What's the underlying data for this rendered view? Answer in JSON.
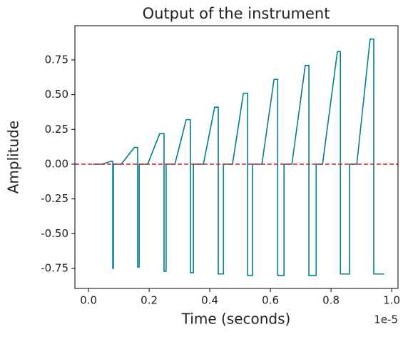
{
  "chart_data": {
    "type": "line",
    "title": "Output of the instrument",
    "xlabel": "Time (seconds)",
    "ylabel": "Amplitude",
    "x_offset_label": "1e-5",
    "x": [
      0.014,
      0.045,
      0.073,
      0.08,
      0.08,
      0.082,
      0.082,
      0.108,
      0.151,
      0.162,
      0.162,
      0.167,
      0.167,
      0.195,
      0.235,
      0.249,
      0.249,
      0.256,
      0.256,
      0.285,
      0.322,
      0.336,
      0.336,
      0.346,
      0.346,
      0.379,
      0.416,
      0.428,
      0.428,
      0.445,
      0.445,
      0.475,
      0.511,
      0.525,
      0.525,
      0.541,
      0.541,
      0.572,
      0.612,
      0.624,
      0.624,
      0.645,
      0.645,
      0.671,
      0.715,
      0.727,
      0.727,
      0.751,
      0.751,
      0.772,
      0.821,
      0.831,
      0.831,
      0.861,
      0.861,
      0.885,
      0.929,
      0.941,
      0.941,
      0.976
    ],
    "series": [
      {
        "color": "#007f8c",
        "values": [
          0,
          0,
          0.02,
          0.02,
          -0.75,
          -0.75,
          0,
          0,
          0.12,
          0.12,
          -0.74,
          -0.74,
          0,
          0,
          0.22,
          0.22,
          -0.77,
          -0.77,
          0,
          0,
          0.32,
          0.32,
          -0.78,
          -0.78,
          0,
          0,
          0.41,
          0.41,
          -0.79,
          -0.79,
          0,
          0,
          0.51,
          0.51,
          -0.8,
          -0.8,
          0,
          0,
          0.61,
          0.61,
          -0.8,
          -0.8,
          0,
          0,
          0.71,
          0.71,
          -0.8,
          -0.8,
          0,
          0,
          0.81,
          0.81,
          -0.79,
          -0.79,
          0,
          0,
          0.9,
          0.9,
          -0.79,
          -0.79
        ]
      }
    ],
    "hline": {
      "value": 0,
      "color": "#d62728"
    },
    "xlim": [
      -0.045,
      1.021
    ],
    "ylim": [
      -0.894,
      0.996
    ],
    "xticks": [
      {
        "value": 0,
        "label": "0.0"
      },
      0.2,
      0.4,
      0.6,
      0.8,
      {
        "value": 1,
        "label": "1.0"
      }
    ],
    "yticks": [
      -0.75,
      {
        "value": -0.5,
        "label": "-0.50"
      },
      -0.25,
      {
        "value": 0,
        "label": "0.00"
      },
      0.25,
      {
        "value": 0.5,
        "label": "0.50"
      },
      0.75
    ]
  }
}
